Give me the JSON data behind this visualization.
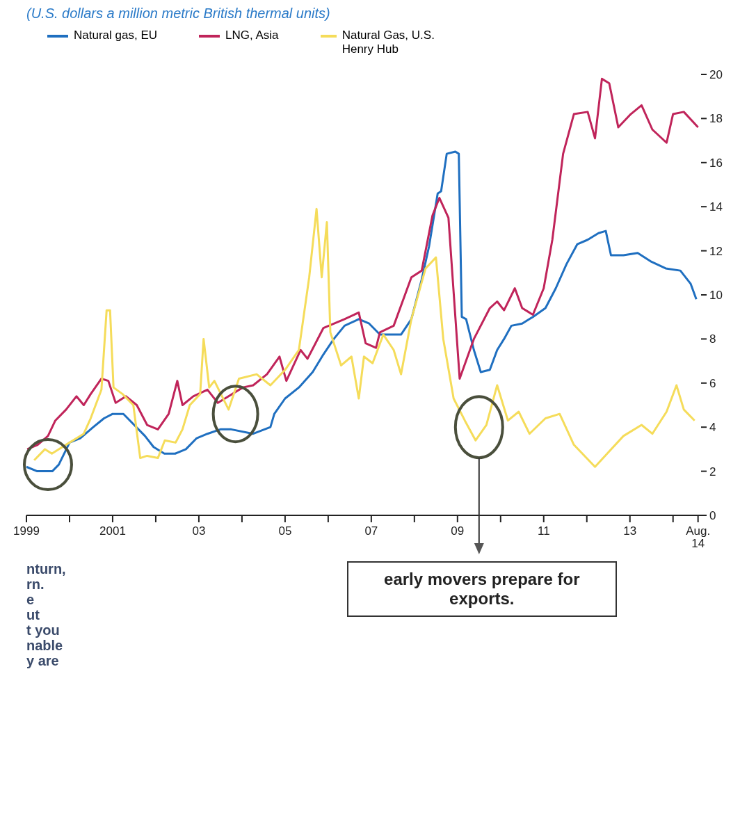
{
  "chart_data": {
    "type": "line",
    "subtitle": "(U.S. dollars a million metric British thermal units)",
    "xlim": [
      1999,
      2014.65
    ],
    "xticks": [
      {
        "value": 1999,
        "label": "1999"
      },
      {
        "value": 2000,
        "label": null
      },
      {
        "value": 2001,
        "label": "2001"
      },
      {
        "value": 2002,
        "label": null
      },
      {
        "value": 2003,
        "label": "03"
      },
      {
        "value": 2004,
        "label": null
      },
      {
        "value": 2005,
        "label": "05"
      },
      {
        "value": 2006,
        "label": null
      },
      {
        "value": 2007,
        "label": "07"
      },
      {
        "value": 2008,
        "label": null
      },
      {
        "value": 2009,
        "label": "09"
      },
      {
        "value": 2010,
        "label": null
      },
      {
        "value": 2011,
        "label": "11"
      },
      {
        "value": 2012,
        "label": null
      },
      {
        "value": 2013,
        "label": "13"
      },
      {
        "value": 2014,
        "label": null
      },
      {
        "value": 2014.58,
        "label": "Aug. 14"
      }
    ],
    "ylim": [
      0,
      20
    ],
    "yticks": [
      0,
      2,
      4,
      6,
      8,
      10,
      12,
      14,
      16,
      18,
      20
    ],
    "grid": false,
    "legend": "top left",
    "series": [
      {
        "name": "Natural gas, EU",
        "color": "#1f6fc0",
        "x": [
          1999.0,
          1999.25,
          1999.6,
          1999.75,
          1999.9,
          2000.0,
          2000.25,
          2000.55,
          2000.8,
          2001.0,
          2001.25,
          2001.5,
          2001.75,
          2001.95,
          2002.2,
          2002.45,
          2002.7,
          2002.95,
          2003.2,
          2003.5,
          2003.75,
          2004.26,
          2004.66,
          2004.75,
          2005.0,
          2005.32,
          2005.64,
          2005.89,
          2006.13,
          2006.38,
          2006.71,
          2006.95,
          2007.2,
          2007.44,
          2007.69,
          2007.93,
          2008.17,
          2008.34,
          2008.54,
          2008.62,
          2008.75,
          2008.95,
          2009.03,
          2009.1,
          2009.2,
          2009.38,
          2009.54,
          2009.75,
          2009.92,
          2010.08,
          2010.25,
          2010.5,
          2010.75,
          2011.04,
          2011.28,
          2011.53,
          2011.78,
          2012.02,
          2012.27,
          2012.44,
          2012.56,
          2012.85,
          2013.18,
          2013.5,
          2013.83,
          2014.17,
          2014.41,
          2014.54
        ],
        "values": [
          2.2,
          2.0,
          2.0,
          2.3,
          2.9,
          3.3,
          3.5,
          4.0,
          4.4,
          4.6,
          4.6,
          4.1,
          3.6,
          3.1,
          2.8,
          2.8,
          3.0,
          3.5,
          3.7,
          3.9,
          3.9,
          3.7,
          4.0,
          4.6,
          5.3,
          5.8,
          6.5,
          7.3,
          8.0,
          8.6,
          8.9,
          8.7,
          8.2,
          8.2,
          8.2,
          8.9,
          10.7,
          12.2,
          14.6,
          14.7,
          16.4,
          16.5,
          16.4,
          9.0,
          8.9,
          7.5,
          6.5,
          6.6,
          7.5,
          8.0,
          8.6,
          8.7,
          9.0,
          9.4,
          10.3,
          11.4,
          12.3,
          12.5,
          12.8,
          12.9,
          11.8,
          11.8,
          11.9,
          11.5,
          11.2,
          11.1,
          10.5,
          9.8
        ]
      },
      {
        "name": "LNG, Asia",
        "color": "#c0245a",
        "x": [
          1999.02,
          1999.26,
          1999.5,
          1999.67,
          1999.92,
          2000.16,
          2000.33,
          2000.49,
          2000.74,
          2000.9,
          2001.07,
          2001.31,
          2001.56,
          2001.8,
          2002.05,
          2002.3,
          2002.5,
          2002.62,
          2002.87,
          2003.2,
          2003.44,
          2003.69,
          2004.02,
          2004.26,
          2004.58,
          2004.87,
          2005.03,
          2005.36,
          2005.52,
          2005.89,
          2006.38,
          2006.71,
          2006.87,
          2007.11,
          2007.2,
          2007.52,
          2007.93,
          2008.17,
          2008.42,
          2008.58,
          2008.79,
          2009.05,
          2009.38,
          2009.75,
          2009.92,
          2010.08,
          2010.33,
          2010.5,
          2010.75,
          2011.0,
          2011.2,
          2011.45,
          2011.7,
          2012.02,
          2012.19,
          2012.35,
          2012.52,
          2012.73,
          2013.02,
          2013.27,
          2013.52,
          2013.85,
          2014.0,
          2014.25,
          2014.58
        ],
        "values": [
          3.0,
          3.2,
          3.6,
          4.3,
          4.8,
          5.4,
          5.0,
          5.5,
          6.2,
          6.1,
          5.1,
          5.4,
          5.0,
          4.1,
          3.9,
          4.6,
          6.1,
          5.0,
          5.4,
          5.7,
          5.1,
          5.4,
          5.8,
          5.9,
          6.4,
          7.2,
          6.1,
          7.5,
          7.1,
          8.5,
          8.9,
          9.2,
          7.8,
          7.6,
          8.3,
          8.6,
          10.8,
          11.1,
          13.6,
          14.4,
          13.5,
          6.2,
          8.0,
          9.4,
          9.7,
          9.3,
          10.3,
          9.4,
          9.1,
          10.3,
          12.5,
          16.4,
          18.2,
          18.3,
          17.1,
          19.8,
          19.6,
          17.6,
          18.2,
          18.6,
          17.5,
          16.9,
          18.2,
          18.3,
          17.6
        ]
      },
      {
        "name": "Natural Gas, U.S. Henry Hub",
        "color": "#f5dc5a",
        "x": [
          1999.18,
          1999.43,
          1999.59,
          1999.75,
          2000.0,
          2000.33,
          2000.49,
          2000.74,
          2000.86,
          2000.94,
          2001.02,
          2001.23,
          2001.48,
          2001.64,
          2001.8,
          2002.05,
          2002.21,
          2002.46,
          2002.62,
          2002.79,
          2003.03,
          2003.11,
          2003.24,
          2003.36,
          2003.69,
          2003.93,
          2004.34,
          2004.66,
          2005.0,
          2005.32,
          2005.56,
          2005.73,
          2005.85,
          2005.97,
          2006.05,
          2006.3,
          2006.54,
          2006.71,
          2006.83,
          2007.03,
          2007.28,
          2007.52,
          2007.69,
          2007.93,
          2008.26,
          2008.5,
          2008.67,
          2008.91,
          2009.17,
          2009.42,
          2009.67,
          2009.92,
          2010.17,
          2010.42,
          2010.67,
          2011.04,
          2011.37,
          2011.7,
          2012.19,
          2012.52,
          2012.85,
          2013.27,
          2013.52,
          2013.85,
          2014.08,
          2014.25,
          2014.5
        ],
        "values": [
          2.5,
          3.0,
          2.8,
          3.0,
          3.3,
          3.7,
          4.4,
          5.7,
          9.3,
          9.3,
          5.8,
          5.5,
          5.0,
          2.6,
          2.7,
          2.6,
          3.4,
          3.3,
          3.9,
          5.0,
          5.5,
          8.0,
          5.8,
          6.1,
          4.8,
          6.2,
          6.4,
          5.9,
          6.6,
          7.5,
          10.8,
          13.9,
          10.8,
          13.3,
          8.3,
          6.8,
          7.2,
          5.3,
          7.2,
          6.9,
          8.2,
          7.5,
          6.4,
          8.9,
          11.2,
          11.7,
          8.0,
          5.3,
          4.3,
          3.4,
          4.1,
          5.9,
          4.3,
          4.7,
          3.7,
          4.4,
          4.6,
          3.2,
          2.2,
          2.9,
          3.6,
          4.1,
          3.7,
          4.7,
          5.9,
          4.8,
          4.3
        ]
      }
    ],
    "annotations": [
      "early movers prepare for exports.",
      "nturn,",
      "rn.",
      "e",
      "ut",
      "t you",
      "nable",
      "y are"
    ]
  }
}
